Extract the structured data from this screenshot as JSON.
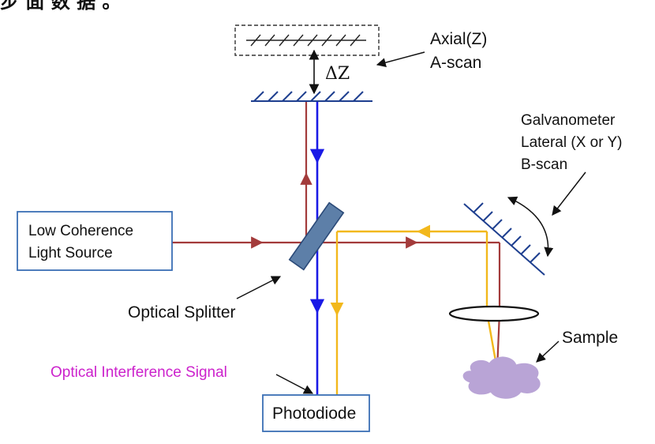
{
  "header": {
    "partial_text": "步 面 数 据 。"
  },
  "reference_arm": {
    "axial_label": "Axial(Z)",
    "ascan_label": "A-scan",
    "delta_label": "ΔZ"
  },
  "galvanometer": {
    "name_label": "Galvanometer",
    "lateral_label": "Lateral (X or Y)",
    "bscan_label": "B-scan"
  },
  "source": {
    "line1": "Low Coherence",
    "line2": "Light Source"
  },
  "splitter": {
    "label": "Optical Splitter"
  },
  "sample": {
    "label": "Sample"
  },
  "signal": {
    "label": "Optical Interference Signal"
  },
  "detector": {
    "label": "Photodiode"
  },
  "colors": {
    "red_beam": "#a33b3b",
    "blue_beam": "#1a1ae6",
    "orange_beam": "#f2b81c",
    "mirror": "#1e3f8f",
    "splitter_fill": "#5d7fa8",
    "sample_fill": "#b9a4d6",
    "box_border": "#3b6fb5",
    "signal_text": "#cc22cc"
  }
}
